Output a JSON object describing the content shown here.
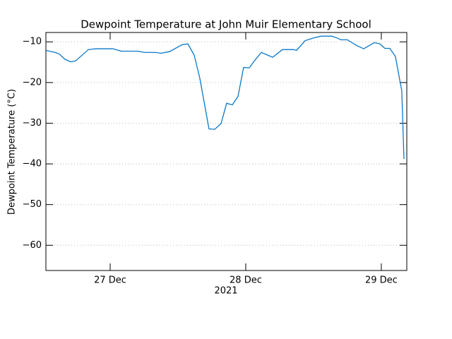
{
  "chart_data": {
    "type": "line",
    "title": "Dewpoint Temperature at John Muir Elementary School",
    "y_label": "Dewpoint Temperature (°C)",
    "x_label": "2021",
    "x": [
      26.526,
      26.594,
      26.625,
      26.667,
      26.708,
      26.745,
      26.839,
      26.891,
      27.021,
      27.083,
      27.203,
      27.255,
      27.333,
      27.375,
      27.438,
      27.531,
      27.573,
      27.62,
      27.661,
      27.729,
      27.771,
      27.818,
      27.859,
      27.901,
      27.943,
      27.984,
      28.026,
      28.068,
      28.115,
      28.151,
      28.198,
      28.271,
      28.354,
      28.375,
      28.438,
      28.505,
      28.557,
      28.635,
      28.677,
      28.703,
      28.75,
      28.818,
      28.87,
      28.948,
      28.99,
      29.026,
      29.063,
      29.104,
      29.135,
      29.151,
      29.167
    ],
    "series": [
      {
        "name": "Dewpoint",
        "color": "#0b78c9",
        "values": [
          -12.1,
          -12.6,
          -13.0,
          -14.3,
          -14.9,
          -14.7,
          -11.9,
          -11.7,
          -11.7,
          -12.3,
          -12.3,
          -12.6,
          -12.6,
          -12.8,
          -12.4,
          -10.7,
          -10.5,
          -13.3,
          -18.9,
          -31.4,
          -31.5,
          -30.1,
          -25.1,
          -25.5,
          -23.4,
          -16.3,
          -16.4,
          -14.5,
          -12.6,
          -13.1,
          -13.8,
          -11.9,
          -11.9,
          -12.1,
          -9.7,
          -9.0,
          -8.6,
          -8.6,
          -9.1,
          -9.5,
          -9.5,
          -10.9,
          -11.7,
          -10.2,
          -10.5,
          -11.6,
          -11.6,
          -13.6,
          -19.2,
          -22.0,
          -38.8
        ]
      }
    ],
    "xlim": [
      26.526,
      29.188
    ],
    "xticks": [
      {
        "value": 27,
        "label": "27 Dec"
      },
      {
        "value": 28,
        "label": "28 Dec"
      },
      {
        "value": 29,
        "label": "29 Dec"
      }
    ],
    "ylim": [
      -66.2,
      -7.7
    ],
    "yticks": [
      {
        "value": -10,
        "label": "−10"
      },
      {
        "value": -20,
        "label": "−20"
      },
      {
        "value": -30,
        "label": "−30"
      },
      {
        "value": -40,
        "label": "−40"
      },
      {
        "value": -50,
        "label": "−50"
      },
      {
        "value": -60,
        "label": "−60"
      }
    ],
    "grid": true
  }
}
